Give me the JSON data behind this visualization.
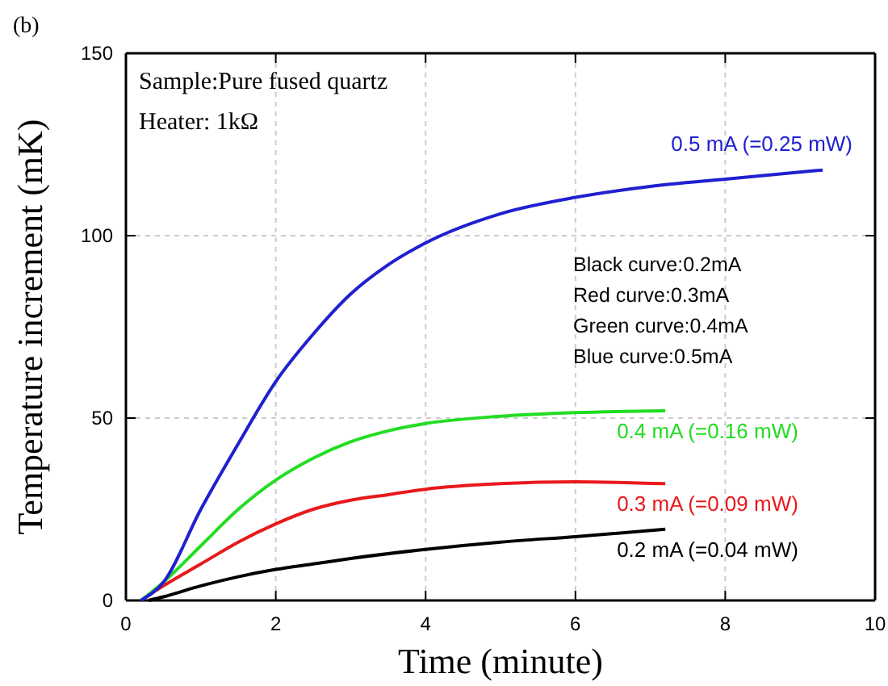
{
  "chart_data": {
    "type": "line",
    "title": "(b)",
    "xlabel": "Time (minute)",
    "ylabel": "Temperature increment (mK)",
    "xlim": [
      0,
      10
    ],
    "xticks": [
      0,
      2,
      4,
      6,
      8,
      10
    ],
    "ylim": [
      0,
      150
    ],
    "yticks": [
      0,
      50,
      100,
      150
    ],
    "grid": true,
    "marker": "none",
    "line_style": "solid",
    "annotations": [
      "Sample:Pure fused quartz",
      "Heater: 1kΩ",
      "Black curve:0.2mA",
      "Red curve:0.3mA",
      "Green curve:0.4mA",
      "Blue curve:0.5mA"
    ],
    "series": [
      {
        "name": "0.2 mA (=0.04 mW)",
        "color": "#000000",
        "x": [
          0.3,
          0.5,
          1,
          1.5,
          2,
          2.5,
          3,
          4,
          5,
          6,
          7.2
        ],
        "values": [
          0,
          1,
          4,
          6.5,
          8.5,
          10,
          11.5,
          14,
          16,
          17.5,
          19.5
        ]
      },
      {
        "name": "0.3 mA (=0.09 mW)",
        "color": "#e8191c",
        "x": [
          0.2,
          0.5,
          1,
          1.5,
          2,
          2.5,
          3,
          3.5,
          4,
          5,
          6,
          7.2
        ],
        "values": [
          0,
          4,
          10,
          16,
          21,
          25,
          27.5,
          29,
          30.5,
          32,
          32.5,
          32
        ]
      },
      {
        "name": "0.4 mA (=0.16 mW)",
        "color": "#22dd22",
        "x": [
          0.2,
          0.5,
          1,
          1.5,
          2,
          2.5,
          3,
          3.5,
          4,
          5,
          6,
          7.2
        ],
        "values": [
          0,
          5,
          15,
          25,
          33,
          39,
          43.5,
          46.5,
          48.5,
          50.5,
          51.5,
          52
        ]
      },
      {
        "name": "0.5 mA (=0.25 mW)",
        "color": "#2020d0",
        "x": [
          0.2,
          0.5,
          1,
          1.5,
          2,
          2.5,
          3,
          3.5,
          4,
          5,
          6,
          7,
          8,
          9.3
        ],
        "values": [
          0,
          5,
          25,
          43,
          60,
          73,
          84,
          92,
          98,
          106,
          110.5,
          113.5,
          115.5,
          118
        ]
      }
    ]
  }
}
